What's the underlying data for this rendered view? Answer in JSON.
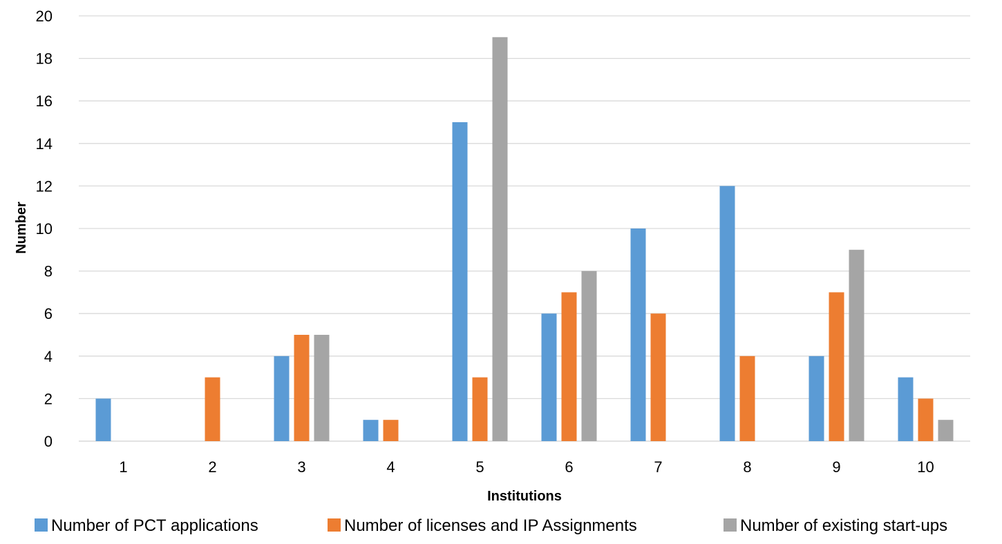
{
  "chart_data": {
    "type": "bar",
    "title": "",
    "xlabel": "Institutions",
    "ylabel": "Number",
    "ylim": [
      0,
      20
    ],
    "yticks": [
      "0",
      "2",
      "4",
      "6",
      "8",
      "10",
      "12",
      "14",
      "16",
      "18",
      "20"
    ],
    "categories": [
      "1",
      "2",
      "3",
      "4",
      "5",
      "6",
      "7",
      "8",
      "9",
      "10"
    ],
    "grid": true,
    "legend_position": "bottom",
    "series": [
      {
        "name": "Number of PCT applications",
        "color": "#5b9bd5",
        "values": [
          2,
          0,
          4,
          1,
          15,
          6,
          10,
          12,
          4,
          3
        ]
      },
      {
        "name": "Number of licenses and IP Assignments",
        "color": "#ed7d31",
        "values": [
          0,
          3,
          5,
          1,
          3,
          7,
          6,
          4,
          7,
          2
        ]
      },
      {
        "name": "Number of existing start-ups",
        "color": "#a5a5a5",
        "values": [
          0,
          0,
          5,
          0,
          19,
          8,
          0,
          0,
          9,
          1
        ]
      }
    ]
  }
}
